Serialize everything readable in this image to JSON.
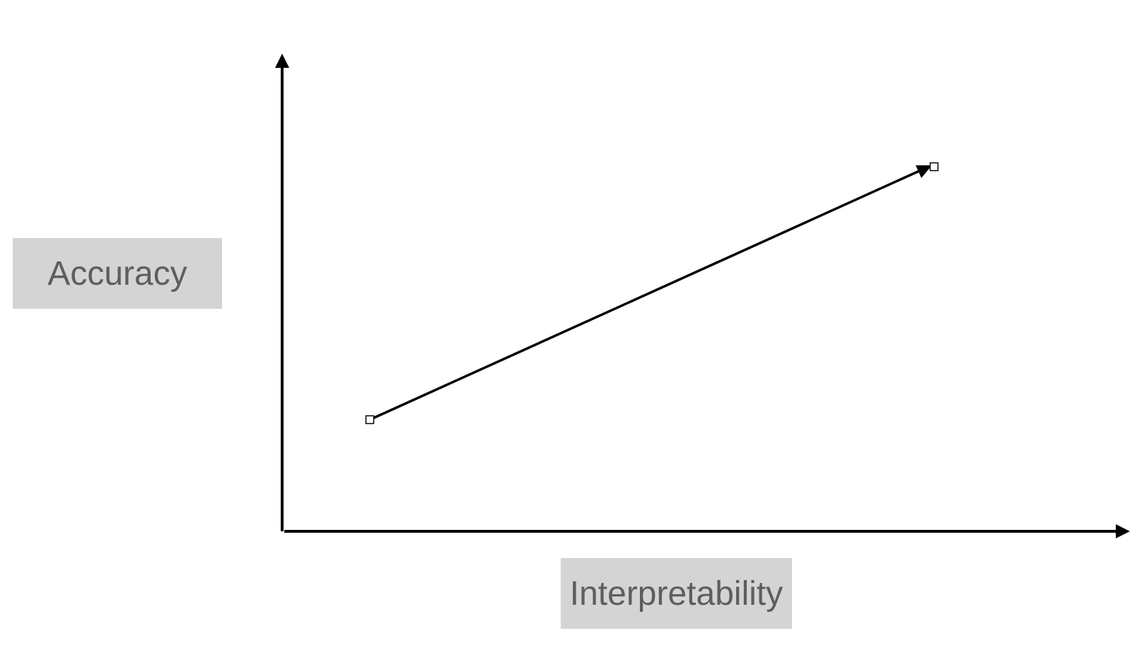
{
  "labels": {
    "y_axis": "Accuracy",
    "x_axis": "Interpretability"
  },
  "colors": {
    "axis": "#000000",
    "label_background": "#d4d4d4",
    "label_text": "#5e5e5e"
  },
  "diagram": {
    "type": "trend-arrow",
    "direction": "increasing",
    "endpoint_marker": "hollow-square"
  }
}
